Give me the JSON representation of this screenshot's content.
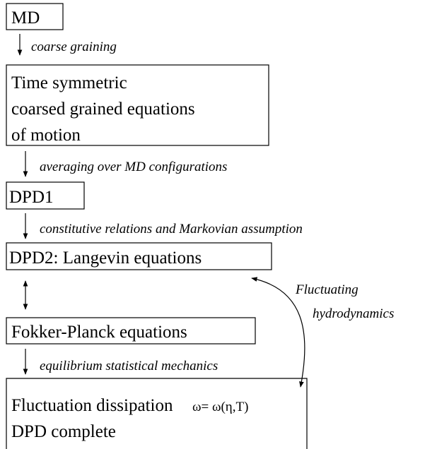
{
  "nodes": [
    {
      "lines": [
        "MD"
      ]
    },
    {
      "lines": [
        "Time symmetric",
        "coarsed grained equations",
        "of motion"
      ]
    },
    {
      "lines": [
        "DPD1"
      ]
    },
    {
      "lines": [
        "DPD2: Langevin equations"
      ]
    },
    {
      "lines": [
        "Fokker-Planck equations"
      ]
    },
    {
      "lines": [
        "Fluctuation dissipation",
        "DPD complete"
      ],
      "formula": "ω= ω(η,T)"
    }
  ],
  "edges": [
    {
      "label": "coarse graining"
    },
    {
      "label": "averaging over MD configurations"
    },
    {
      "label": "constitutive relations and Markovian assumption"
    },
    {
      "label": null
    },
    {
      "label": "equilibrium statistical mechanics"
    }
  ],
  "side_link": {
    "lines": [
      "Fluctuating",
      "hydrodynamics"
    ]
  }
}
